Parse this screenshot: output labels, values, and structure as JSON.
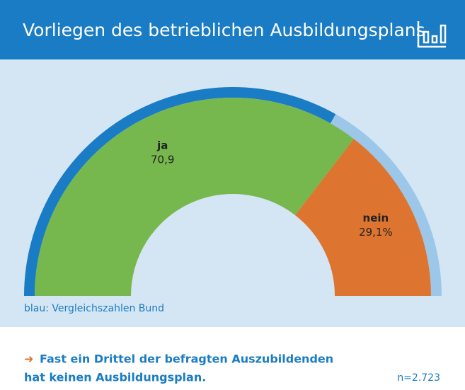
{
  "chart_data": {
    "type": "semi-donut",
    "title": "Vorliegen des betrieblichen Ausbildungsplans",
    "categories": [
      "ja",
      "nein"
    ],
    "values": [
      70.9,
      29.1
    ],
    "value_labels": [
      "70,9",
      "29,1%"
    ],
    "colors": [
      "#77b84e",
      "#dd7530"
    ],
    "comparison": {
      "label": "blau: Vergleichszahlen Bund",
      "values": [
        66.4,
        33.6
      ],
      "colors": [
        "#1a7cc4",
        "#9cc7e8"
      ]
    },
    "footnote": {
      "arrow": "➜",
      "lines": [
        "Fast ein Drittel der befragten Auszubildenden",
        "hat keinen Ausbildungsplan."
      ]
    },
    "sample": "n=2.723"
  }
}
